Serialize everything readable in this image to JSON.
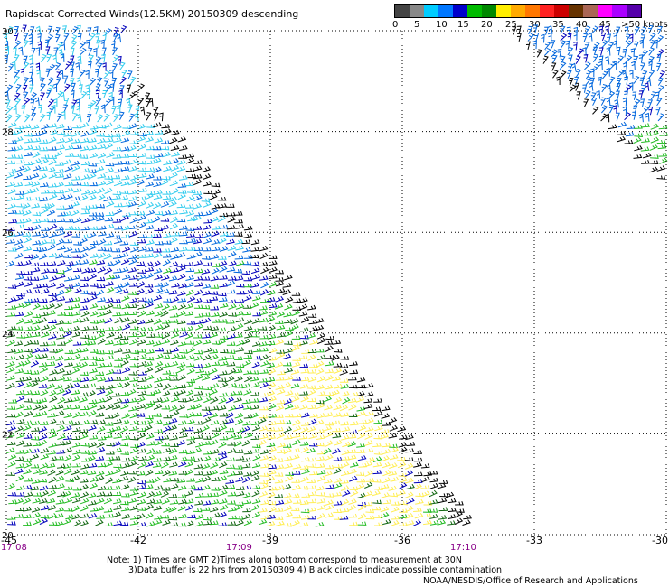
{
  "title": "Rapidscat Corrected Winds(12.5KM) 20150309 descending",
  "colorbar": {
    "colors": [
      "#444444",
      "#888888",
      "#00ccff",
      "#0077ff",
      "#0000cc",
      "#00bb00",
      "#008800",
      "#ffee00",
      "#ffaa00",
      "#ff7700",
      "#ff2222",
      "#cc0000",
      "#663300",
      "#aa6655",
      "#ff00ff",
      "#aa00ff",
      "#5500aa"
    ],
    "labels": [
      "0",
      "5",
      "10",
      "15",
      "20",
      "25",
      "30",
      "35",
      "40",
      "45",
      ">50 knots"
    ]
  },
  "map": {
    "lon_ticks": [
      "-45",
      "-42",
      "-39",
      "-36",
      "-33",
      "-30"
    ],
    "lat_ticks": [
      "30",
      "28",
      "26",
      "24",
      "22",
      "20"
    ],
    "time_labels": [
      "17:08",
      "17:09",
      "17:10"
    ],
    "lon_range": [
      -45,
      -30
    ],
    "lat_range": [
      20,
      30
    ],
    "time_label_color": "#880088",
    "wind_colors": {
      "light_blue": "#33ccee",
      "blue": "#0066dd",
      "dark_blue": "#0000bb",
      "green": "#22bb22",
      "dark_green": "#116611",
      "yellow": "#ffee55",
      "black": "#000000"
    }
  },
  "notes": {
    "line1": "Note: 1) Times are GMT 2)Times along bottom correspond to measurement at 30N",
    "line2": "3)Data buffer is 22 hrs from 20150309 4) Black circles indicate possible contamination"
  },
  "credit": "NOAA/NESDIS/Office of Research and Applications"
}
